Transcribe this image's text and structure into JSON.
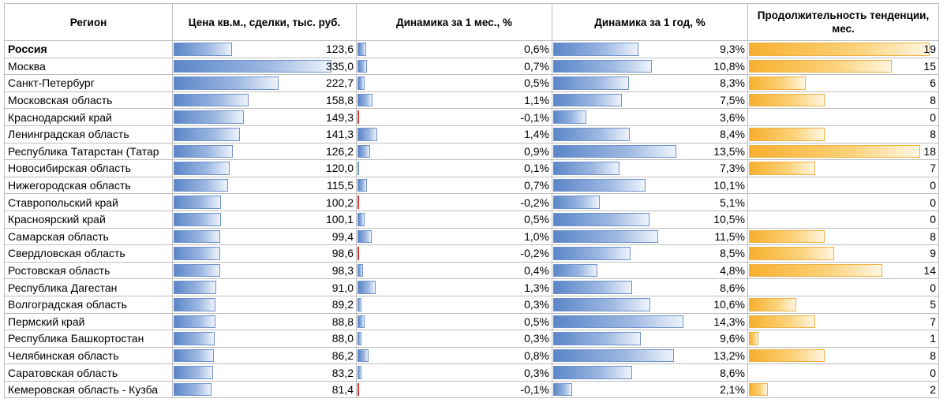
{
  "headers": {
    "region": "Регион",
    "price": "Цена кв.м., сделки, тыс. руб.",
    "month": "Динамика за 1 мес., %",
    "year": "Динамика за 1 год, %",
    "trend": "Продолжительность тенденции, мес."
  },
  "colors": {
    "blue_bar": "#5b86c8",
    "orange_bar": "#f7b02f",
    "negative": "#d83a3a"
  },
  "scales": {
    "price_max": 335.0,
    "month_max": 1.4,
    "year_max": 14.3,
    "trend_max": 19
  },
  "rows": [
    {
      "region": "Россия",
      "bold": true,
      "price": "123,6",
      "price_v": 123.6,
      "month": "0,6%",
      "month_v": 0.6,
      "year": "9,3%",
      "year_v": 9.3,
      "trend": "19",
      "trend_v": 19
    },
    {
      "region": "Москва",
      "price": "335,0",
      "price_v": 335.0,
      "month": "0,7%",
      "month_v": 0.7,
      "year": "10,8%",
      "year_v": 10.8,
      "trend": "15",
      "trend_v": 15
    },
    {
      "region": "Санкт-Петербург",
      "price": "222,7",
      "price_v": 222.7,
      "month": "0,5%",
      "month_v": 0.5,
      "year": "8,3%",
      "year_v": 8.3,
      "trend": "6",
      "trend_v": 6
    },
    {
      "region": "Московская область",
      "price": "158,8",
      "price_v": 158.8,
      "month": "1,1%",
      "month_v": 1.1,
      "year": "7,5%",
      "year_v": 7.5,
      "trend": "8",
      "trend_v": 8
    },
    {
      "region": "Краснодарский край",
      "price": "149,3",
      "price_v": 149.3,
      "month": "-0,1%",
      "month_v": -0.1,
      "year": "3,6%",
      "year_v": 3.6,
      "trend": "0",
      "trend_v": 0
    },
    {
      "region": "Ленинградская область",
      "price": "141,3",
      "price_v": 141.3,
      "month": "1,4%",
      "month_v": 1.4,
      "year": "8,4%",
      "year_v": 8.4,
      "trend": "8",
      "trend_v": 8
    },
    {
      "region": "Республика Татарстан (Татар",
      "price": "126,2",
      "price_v": 126.2,
      "month": "0,9%",
      "month_v": 0.9,
      "year": "13,5%",
      "year_v": 13.5,
      "trend": "18",
      "trend_v": 18
    },
    {
      "region": "Новосибирская область",
      "price": "120,0",
      "price_v": 120.0,
      "month": "0,1%",
      "month_v": 0.1,
      "year": "7,3%",
      "year_v": 7.3,
      "trend": "7",
      "trend_v": 7
    },
    {
      "region": "Нижегородская область",
      "price": "115,5",
      "price_v": 115.5,
      "month": "0,7%",
      "month_v": 0.7,
      "year": "10,1%",
      "year_v": 10.1,
      "trend": "0",
      "trend_v": 0
    },
    {
      "region": "Ставропольский край",
      "price": "100,2",
      "price_v": 100.2,
      "month": "-0,2%",
      "month_v": -0.2,
      "year": "5,1%",
      "year_v": 5.1,
      "trend": "0",
      "trend_v": 0
    },
    {
      "region": "Красноярский край",
      "price": "100,1",
      "price_v": 100.1,
      "month": "0,5%",
      "month_v": 0.5,
      "year": "10,5%",
      "year_v": 10.5,
      "trend": "0",
      "trend_v": 0
    },
    {
      "region": "Самарская область",
      "price": "99,4",
      "price_v": 99.4,
      "month": "1,0%",
      "month_v": 1.0,
      "year": "11,5%",
      "year_v": 11.5,
      "trend": "8",
      "trend_v": 8
    },
    {
      "region": "Свердловская область",
      "price": "98,6",
      "price_v": 98.6,
      "month": "-0,2%",
      "month_v": -0.2,
      "year": "8,5%",
      "year_v": 8.5,
      "trend": "9",
      "trend_v": 9
    },
    {
      "region": "Ростовская область",
      "price": "98,3",
      "price_v": 98.3,
      "month": "0,4%",
      "month_v": 0.4,
      "year": "4,8%",
      "year_v": 4.8,
      "trend": "14",
      "trend_v": 14
    },
    {
      "region": "Республика Дагестан",
      "price": "91,0",
      "price_v": 91.0,
      "month": "1,3%",
      "month_v": 1.3,
      "year": "8,6%",
      "year_v": 8.6,
      "trend": "0",
      "trend_v": 0
    },
    {
      "region": "Волгоградская область",
      "price": "89,2",
      "price_v": 89.2,
      "month": "0,3%",
      "month_v": 0.3,
      "year": "10,6%",
      "year_v": 10.6,
      "trend": "5",
      "trend_v": 5
    },
    {
      "region": "Пермский край",
      "price": "88,8",
      "price_v": 88.8,
      "month": "0,5%",
      "month_v": 0.5,
      "year": "14,3%",
      "year_v": 14.3,
      "trend": "7",
      "trend_v": 7
    },
    {
      "region": "Республика Башкортостан",
      "price": "88,0",
      "price_v": 88.0,
      "month": "0,3%",
      "month_v": 0.3,
      "year": "9,6%",
      "year_v": 9.6,
      "trend": "1",
      "trend_v": 1
    },
    {
      "region": "Челябинская область",
      "price": "86,2",
      "price_v": 86.2,
      "month": "0,8%",
      "month_v": 0.8,
      "year": "13,2%",
      "year_v": 13.2,
      "trend": "8",
      "trend_v": 8
    },
    {
      "region": "Саратовская область",
      "price": "83,2",
      "price_v": 83.2,
      "month": "0,3%",
      "month_v": 0.3,
      "year": "8,6%",
      "year_v": 8.6,
      "trend": "0",
      "trend_v": 0
    },
    {
      "region": "Кемеровская область - Кузба",
      "price": "81,4",
      "price_v": 81.4,
      "month": "-0,1%",
      "month_v": -0.1,
      "year": "2,1%",
      "year_v": 2.1,
      "trend": "2",
      "trend_v": 2
    }
  ]
}
